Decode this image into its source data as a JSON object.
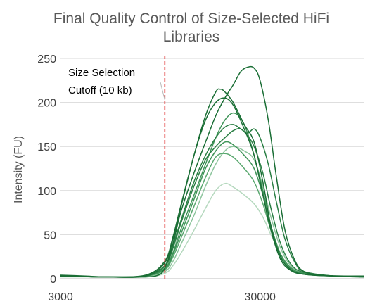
{
  "chart_data": {
    "type": "line",
    "title": "Final Quality Control of Size-Selected HiFi Libraries",
    "title_lines": [
      "Final Quality Control of Size-Selected HiFi",
      "Libraries"
    ],
    "ylabel": "Intensity (FU)",
    "xlabel": "",
    "x_scale": "log",
    "xlim": [
      3000,
      100000
    ],
    "ylim": [
      0,
      250
    ],
    "y_ticks": [
      0,
      50,
      100,
      150,
      200,
      250
    ],
    "x_ticks": [
      3000,
      30000
    ],
    "y_tick_labels": [
      "0",
      "50",
      "100",
      "150",
      "200",
      "250"
    ],
    "x_tick_labels": [
      "3000",
      "30000"
    ],
    "grid": {
      "y": true,
      "x": false
    },
    "cutoff": {
      "x": 10000,
      "label_lines": [
        "Size Selection",
        "Cutoff (10 kb)"
      ],
      "color": "#e03030"
    },
    "colors": {
      "dark_green": "#1a6e35",
      "mid_green": "#3f9458",
      "light_green": "#8cc49c",
      "pale_green": "#b6d9bf",
      "gridline": "#d9d9d9",
      "axis": "#bfbfbf",
      "text": "#404040"
    },
    "series": [
      {
        "color": "#1a6e35",
        "values": [
          [
            3000,
            4
          ],
          [
            4000,
            3
          ],
          [
            5000,
            2
          ],
          [
            7000,
            2
          ],
          [
            9000,
            3
          ],
          [
            10000,
            12
          ],
          [
            11000,
            40
          ],
          [
            12000,
            75
          ],
          [
            14000,
            120
          ],
          [
            16000,
            155
          ],
          [
            18000,
            185
          ],
          [
            20000,
            205
          ],
          [
            22000,
            220
          ],
          [
            24000,
            235
          ],
          [
            26000,
            240
          ],
          [
            28000,
            239
          ],
          [
            30000,
            225
          ],
          [
            33000,
            180
          ],
          [
            36000,
            120
          ],
          [
            40000,
            55
          ],
          [
            45000,
            20
          ],
          [
            50000,
            8
          ],
          [
            60000,
            4
          ],
          [
            80000,
            3
          ],
          [
            100000,
            3
          ]
        ]
      },
      {
        "color": "#1a6e35",
        "values": [
          [
            3000,
            3
          ],
          [
            5000,
            2
          ],
          [
            8000,
            3
          ],
          [
            10000,
            18
          ],
          [
            11000,
            45
          ],
          [
            12000,
            80
          ],
          [
            14000,
            140
          ],
          [
            16000,
            185
          ],
          [
            18000,
            212
          ],
          [
            19000,
            215
          ],
          [
            20000,
            212
          ],
          [
            22000,
            200
          ],
          [
            25000,
            175
          ],
          [
            28000,
            155
          ],
          [
            31000,
            110
          ],
          [
            34000,
            60
          ],
          [
            38000,
            25
          ],
          [
            43000,
            10
          ],
          [
            50000,
            5
          ],
          [
            70000,
            3
          ],
          [
            100000,
            3
          ]
        ]
      },
      {
        "color": "#1a6e35",
        "values": [
          [
            3000,
            3
          ],
          [
            5000,
            2
          ],
          [
            8000,
            4
          ],
          [
            10000,
            20
          ],
          [
            11000,
            48
          ],
          [
            12000,
            82
          ],
          [
            14000,
            140
          ],
          [
            16000,
            180
          ],
          [
            18000,
            200
          ],
          [
            20000,
            205
          ],
          [
            22000,
            197
          ],
          [
            25000,
            170
          ],
          [
            28000,
            140
          ],
          [
            31000,
            95
          ],
          [
            34000,
            55
          ],
          [
            38000,
            22
          ],
          [
            43000,
            9
          ],
          [
            50000,
            5
          ],
          [
            70000,
            3
          ],
          [
            100000,
            2
          ]
        ]
      },
      {
        "color": "#2a7f44",
        "values": [
          [
            3000,
            3
          ],
          [
            5000,
            2
          ],
          [
            8000,
            3
          ],
          [
            10000,
            15
          ],
          [
            11000,
            38
          ],
          [
            12000,
            65
          ],
          [
            14000,
            110
          ],
          [
            16000,
            140
          ],
          [
            18000,
            160
          ],
          [
            20000,
            172
          ],
          [
            22000,
            175
          ],
          [
            24000,
            170
          ],
          [
            26000,
            165
          ],
          [
            28000,
            170
          ],
          [
            30000,
            160
          ],
          [
            33000,
            130
          ],
          [
            36000,
            90
          ],
          [
            40000,
            45
          ],
          [
            45000,
            18
          ],
          [
            50000,
            8
          ],
          [
            70000,
            3
          ],
          [
            100000,
            2
          ]
        ]
      },
      {
        "color": "#2a7f44",
        "values": [
          [
            3000,
            3
          ],
          [
            5000,
            2
          ],
          [
            8000,
            3
          ],
          [
            10000,
            14
          ],
          [
            11000,
            35
          ],
          [
            12000,
            62
          ],
          [
            14000,
            105
          ],
          [
            16000,
            135
          ],
          [
            18000,
            150
          ],
          [
            20000,
            160
          ],
          [
            22000,
            168
          ],
          [
            24000,
            170
          ],
          [
            26000,
            162
          ],
          [
            28000,
            150
          ],
          [
            31000,
            120
          ],
          [
            34000,
            80
          ],
          [
            38000,
            40
          ],
          [
            43000,
            16
          ],
          [
            50000,
            7
          ],
          [
            70000,
            3
          ],
          [
            100000,
            2
          ]
        ]
      },
      {
        "color": "#3f9458",
        "values": [
          [
            3000,
            3
          ],
          [
            5000,
            2
          ],
          [
            8000,
            3
          ],
          [
            10000,
            12
          ],
          [
            11000,
            30
          ],
          [
            12000,
            55
          ],
          [
            14000,
            95
          ],
          [
            16000,
            130
          ],
          [
            18000,
            160
          ],
          [
            20000,
            180
          ],
          [
            22000,
            188
          ],
          [
            24000,
            182
          ],
          [
            26000,
            165
          ],
          [
            28000,
            140
          ],
          [
            31000,
            100
          ],
          [
            34000,
            60
          ],
          [
            38000,
            28
          ],
          [
            43000,
            12
          ],
          [
            50000,
            6
          ],
          [
            70000,
            3
          ],
          [
            100000,
            2
          ]
        ]
      },
      {
        "color": "#3f9458",
        "values": [
          [
            3000,
            3
          ],
          [
            5000,
            2
          ],
          [
            8000,
            3
          ],
          [
            10000,
            11
          ],
          [
            11000,
            28
          ],
          [
            12000,
            50
          ],
          [
            14000,
            90
          ],
          [
            16000,
            125
          ],
          [
            18000,
            145
          ],
          [
            20000,
            155
          ],
          [
            22000,
            152
          ],
          [
            25000,
            140
          ],
          [
            28000,
            125
          ],
          [
            31000,
            95
          ],
          [
            34000,
            60
          ],
          [
            38000,
            28
          ],
          [
            43000,
            12
          ],
          [
            50000,
            6
          ],
          [
            70000,
            3
          ],
          [
            100000,
            2
          ]
        ]
      },
      {
        "color": "#5aa86f",
        "values": [
          [
            3000,
            3
          ],
          [
            5000,
            2
          ],
          [
            8000,
            3
          ],
          [
            10000,
            10
          ],
          [
            11000,
            25
          ],
          [
            12000,
            45
          ],
          [
            14000,
            82
          ],
          [
            16000,
            115
          ],
          [
            18000,
            138
          ],
          [
            20000,
            142
          ],
          [
            22000,
            138
          ],
          [
            25000,
            125
          ],
          [
            28000,
            110
          ],
          [
            31000,
            85
          ],
          [
            34000,
            55
          ],
          [
            38000,
            26
          ],
          [
            43000,
            11
          ],
          [
            50000,
            5
          ],
          [
            70000,
            3
          ],
          [
            100000,
            2
          ]
        ]
      },
      {
        "color": "#8cc49c",
        "values": [
          [
            3000,
            3
          ],
          [
            5000,
            2
          ],
          [
            8000,
            2
          ],
          [
            10000,
            8
          ],
          [
            11000,
            20
          ],
          [
            12000,
            38
          ],
          [
            14000,
            72
          ],
          [
            16000,
            105
          ],
          [
            18000,
            130
          ],
          [
            20000,
            145
          ],
          [
            22000,
            150
          ],
          [
            25000,
            145
          ],
          [
            28000,
            135
          ],
          [
            31000,
            105
          ],
          [
            34000,
            70
          ],
          [
            38000,
            35
          ],
          [
            43000,
            14
          ],
          [
            50000,
            6
          ],
          [
            70000,
            3
          ],
          [
            100000,
            2
          ]
        ]
      },
      {
        "color": "#b6d9bf",
        "values": [
          [
            3000,
            2
          ],
          [
            5000,
            2
          ],
          [
            8000,
            2
          ],
          [
            10000,
            6
          ],
          [
            11000,
            15
          ],
          [
            12000,
            28
          ],
          [
            14000,
            55
          ],
          [
            16000,
            80
          ],
          [
            18000,
            100
          ],
          [
            20000,
            108
          ],
          [
            22000,
            104
          ],
          [
            25000,
            95
          ],
          [
            28000,
            85
          ],
          [
            31000,
            70
          ],
          [
            34000,
            50
          ],
          [
            38000,
            28
          ],
          [
            43000,
            12
          ],
          [
            50000,
            5
          ],
          [
            70000,
            3
          ],
          [
            100000,
            2
          ]
        ]
      }
    ]
  }
}
